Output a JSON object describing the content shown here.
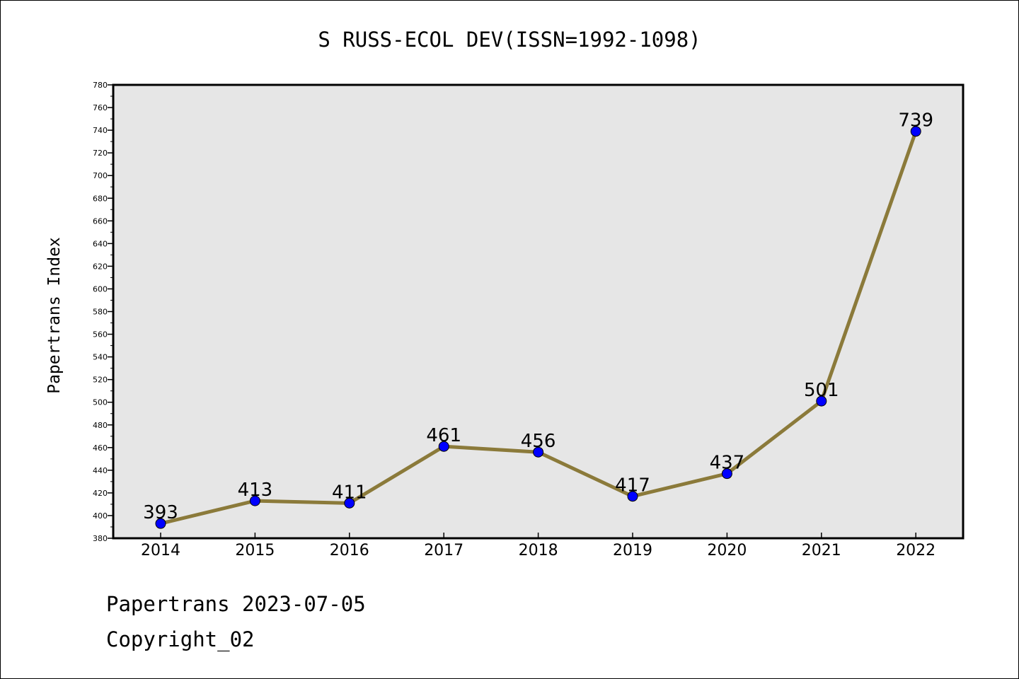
{
  "chart_data": {
    "type": "line",
    "title": "S RUSS-ECOL DEV(ISSN=1992-1098)",
    "xlabel": "",
    "ylabel": "Papertrans Index",
    "x": [
      "2014",
      "2015",
      "2016",
      "2017",
      "2018",
      "2019",
      "2020",
      "2021",
      "2022"
    ],
    "series": [
      {
        "values": [
          393,
          413,
          411,
          461,
          456,
          417,
          437,
          501,
          739
        ]
      }
    ],
    "data_labels": [
      "393",
      "413",
      "411",
      "461",
      "456",
      "417",
      "437",
      "501",
      "739"
    ],
    "ylim": [
      380,
      780
    ],
    "ytick_step": 20,
    "grid": false,
    "legend": "none",
    "colors": {
      "line": "#8b7a3a",
      "marker": "#0000ff",
      "plot_background": "#e6e6e6"
    }
  },
  "footer": {
    "line1": "Papertrans 2023-07-05",
    "line2": "Copyright_02"
  }
}
